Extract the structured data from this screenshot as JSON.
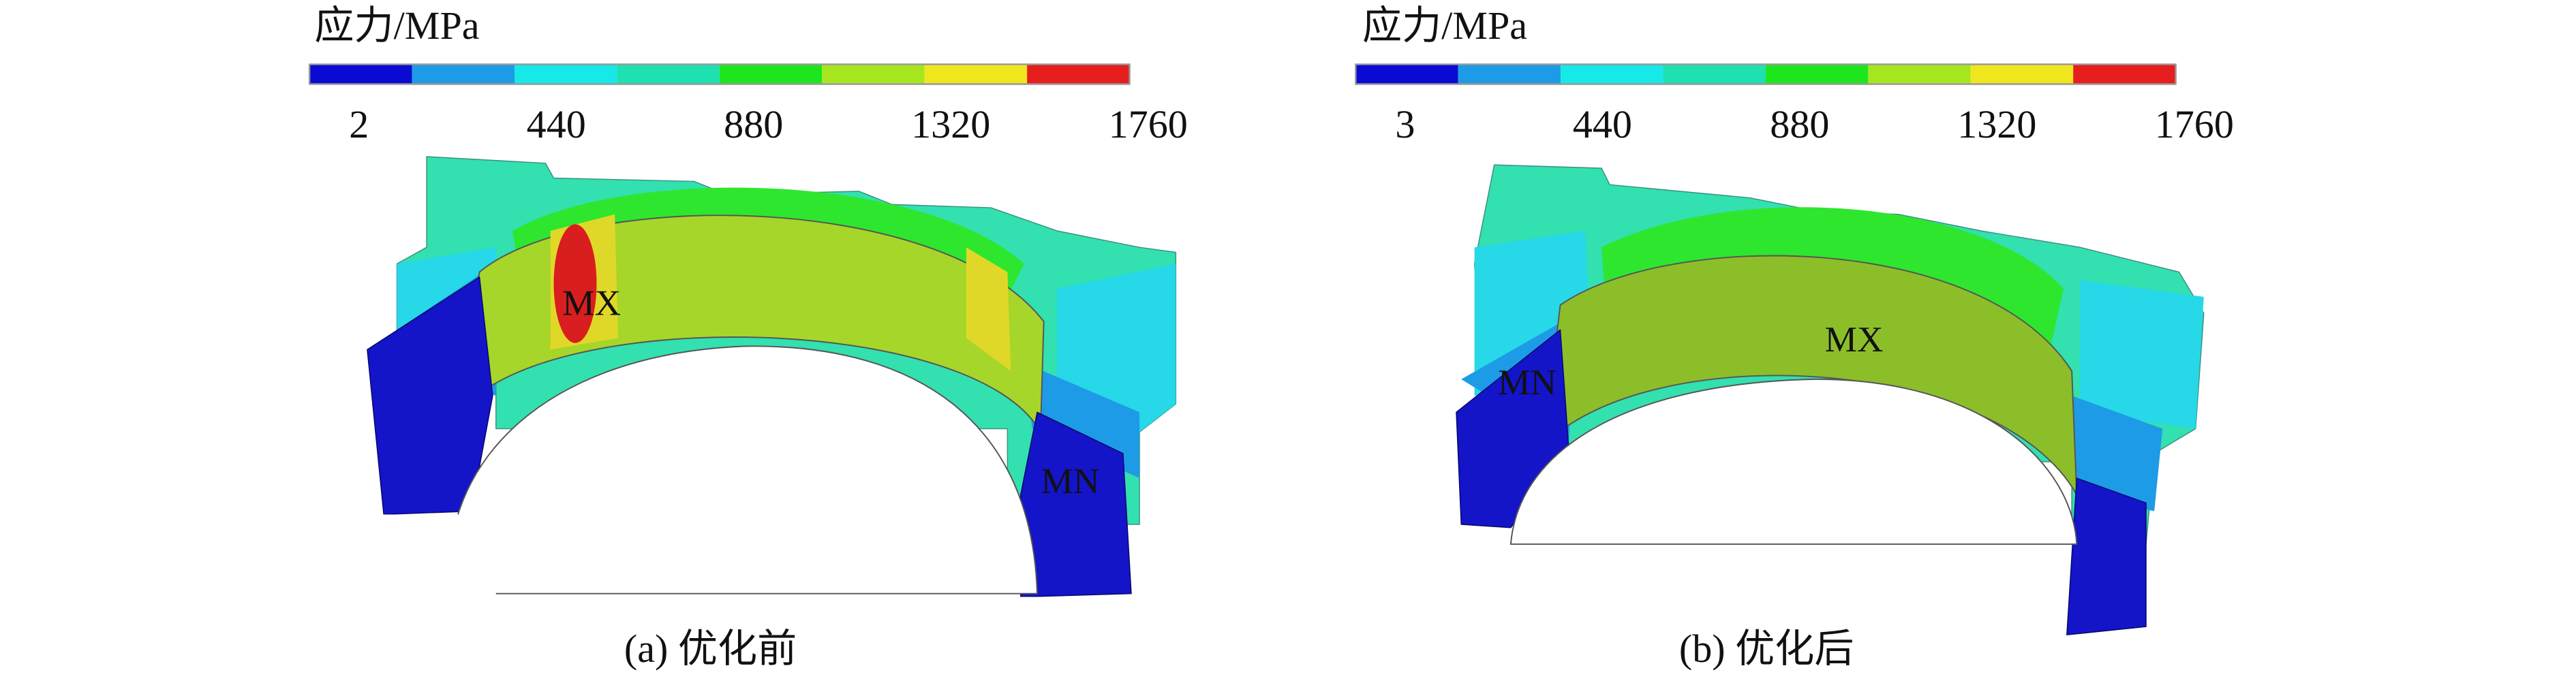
{
  "panels": [
    {
      "legend_title": "应力/MPa",
      "legend_ticks": [
        "2",
        "440",
        "880",
        "1320",
        "1760"
      ],
      "max_label": "MX",
      "min_label": "MN",
      "caption": "(a) 优化前"
    },
    {
      "legend_title": "应力/MPa",
      "legend_ticks": [
        "3",
        "440",
        "880",
        "1320",
        "1760"
      ],
      "max_label": "MX",
      "min_label": "MN",
      "caption": "(b) 优化后"
    }
  ]
}
